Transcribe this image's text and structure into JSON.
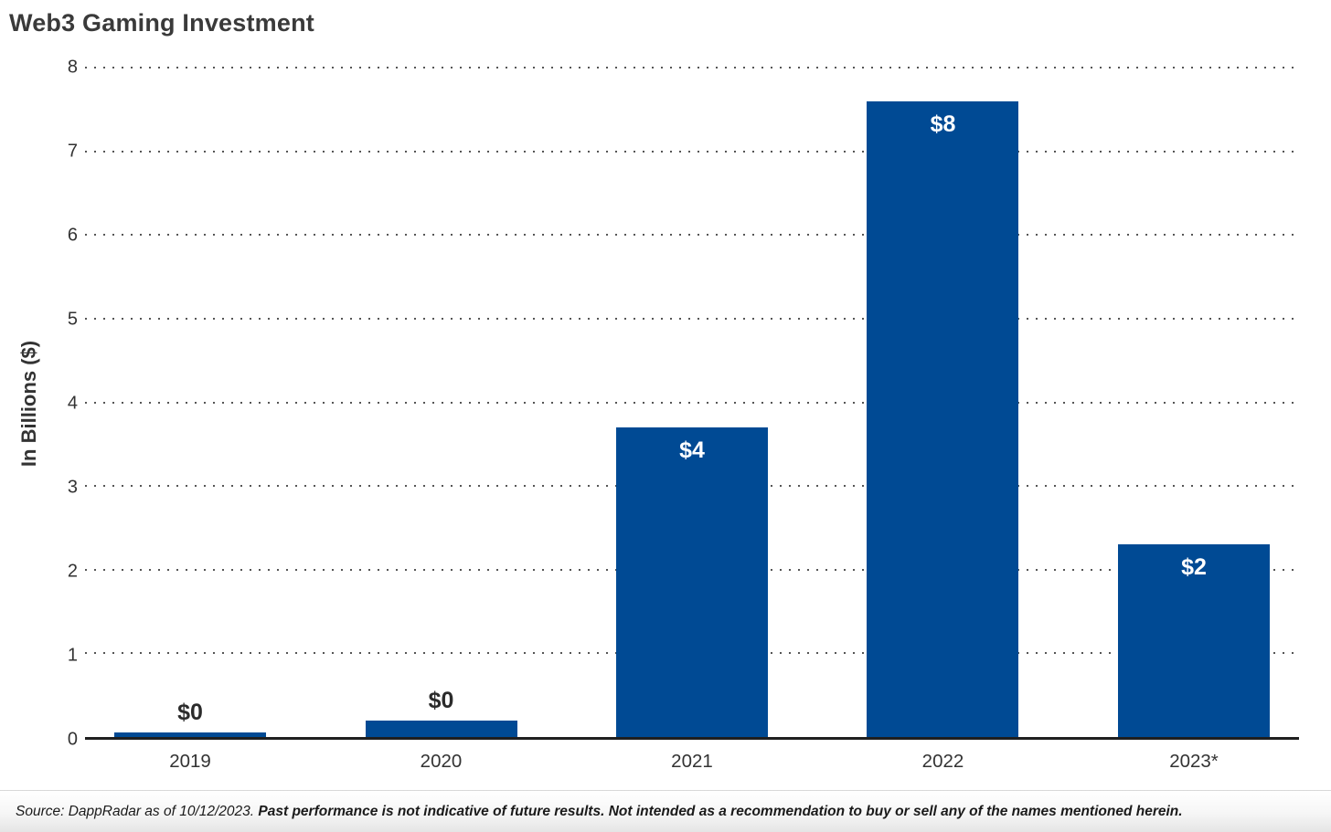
{
  "title": "Web3 Gaming Investment",
  "colors": {
    "bar": "#004a94",
    "title": "#3a3a3a",
    "axis": "#1f1f1f",
    "grid": "#555555",
    "tick": "#333333",
    "label_dark": "#2b2b2b",
    "label_light": "#ffffff",
    "footer_text": "#1a1a1a",
    "footer_border": "#d8d8d8"
  },
  "chart_data": {
    "type": "bar",
    "title": "Web3 Gaming Investment",
    "categories": [
      "2019",
      "2020",
      "2021",
      "2022",
      "2023*"
    ],
    "values": [
      0.05,
      0.2,
      3.7,
      7.6,
      2.3
    ],
    "bar_labels": [
      "$0",
      "$0",
      "$4",
      "$8",
      "$2"
    ],
    "label_inside": [
      false,
      false,
      true,
      true,
      true
    ],
    "xlabel": "",
    "ylabel": "In Billions ($)",
    "ylim": [
      0,
      8
    ],
    "yticks": [
      0,
      1,
      2,
      3,
      4,
      5,
      6,
      7,
      8
    ],
    "grid": "horizontal-dotted",
    "legend": "none"
  },
  "footer": {
    "source": "Source: DappRadar as of 10/12/2023. ",
    "disclaimer": "Past performance is not indicative of future results. Not intended as a recommendation to buy or sell any of the names mentioned herein."
  }
}
